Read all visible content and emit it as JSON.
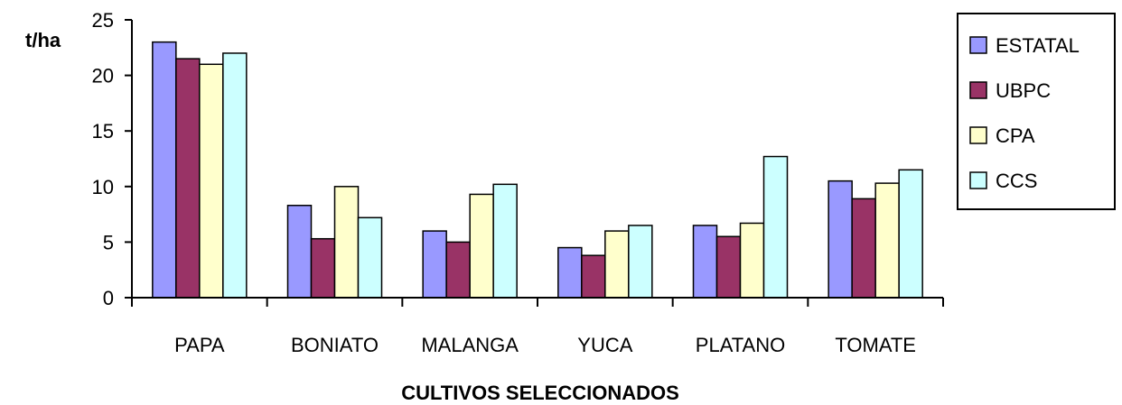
{
  "chart_data": {
    "type": "bar",
    "title": "",
    "xlabel": "CULTIVOS SELECCIONADOS",
    "ylabel": "t/ha",
    "ylim": [
      0,
      25
    ],
    "yticks": [
      "0",
      "5",
      "10",
      "15",
      "20",
      "25"
    ],
    "categories": [
      "PAPA",
      "BONIATO",
      "MALANGA",
      "YUCA",
      "PLATANO",
      "TOMATE"
    ],
    "series": [
      {
        "name": "ESTATAL",
        "color": "#9999ff",
        "values": [
          23.0,
          8.3,
          6.0,
          4.5,
          6.5,
          10.5
        ]
      },
      {
        "name": "UBPC",
        "color": "#993366",
        "values": [
          21.5,
          5.3,
          5.0,
          3.8,
          5.5,
          8.9
        ]
      },
      {
        "name": "CPA",
        "color": "#ffffcc",
        "values": [
          21.0,
          10.0,
          9.3,
          6.0,
          6.7,
          10.3
        ]
      },
      {
        "name": "CCS",
        "color": "#ccffff",
        "values": [
          22.0,
          7.2,
          10.2,
          6.5,
          12.7,
          11.5
        ]
      }
    ],
    "legend_position": "right",
    "grid": false
  }
}
